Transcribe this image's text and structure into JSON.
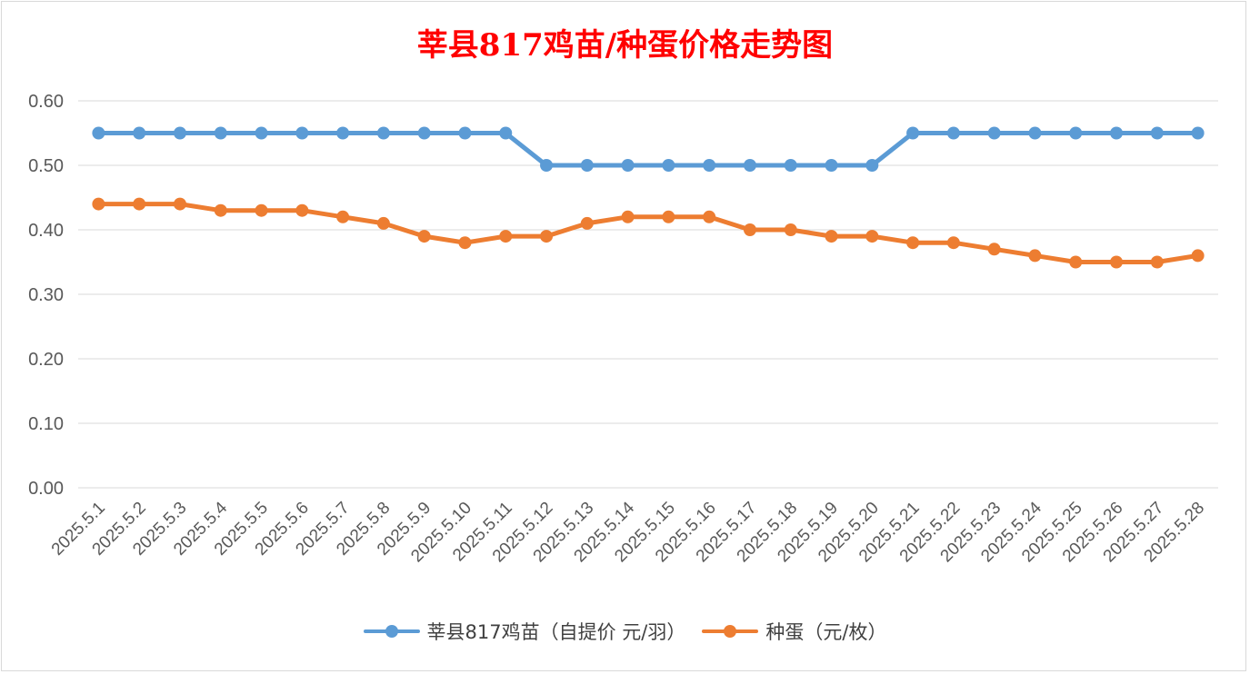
{
  "chart_data": {
    "type": "line",
    "title": "莘县817鸡苗/种蛋价格走势图",
    "categories": [
      "2025.5.1",
      "2025.5.2",
      "2025.5.3",
      "2025.5.4",
      "2025.5.5",
      "2025.5.6",
      "2025.5.7",
      "2025.5.8",
      "2025.5.9",
      "2025.5.10",
      "2025.5.11",
      "2025.5.12",
      "2025.5.13",
      "2025.5.14",
      "2025.5.15",
      "2025.5.16",
      "2025.5.17",
      "2025.5.18",
      "2025.5.19",
      "2025.5.20",
      "2025.5.21",
      "2025.5.22",
      "2025.5.23",
      "2025.5.24",
      "2025.5.25",
      "2025.5.26",
      "2025.5.27",
      "2025.5.28"
    ],
    "series": [
      {
        "name": "莘县817鸡苗（自提价 元/羽）",
        "color": "#5b9bd5",
        "values": [
          0.55,
          0.55,
          0.55,
          0.55,
          0.55,
          0.55,
          0.55,
          0.55,
          0.55,
          0.55,
          0.55,
          0.5,
          0.5,
          0.5,
          0.5,
          0.5,
          0.5,
          0.5,
          0.5,
          0.5,
          0.55,
          0.55,
          0.55,
          0.55,
          0.55,
          0.55,
          0.55,
          0.55
        ]
      },
      {
        "name": "种蛋（元/枚）",
        "color": "#ed7d31",
        "values": [
          0.44,
          0.44,
          0.44,
          0.43,
          0.43,
          0.43,
          0.42,
          0.41,
          0.39,
          0.38,
          0.39,
          0.39,
          0.41,
          0.42,
          0.42,
          0.42,
          0.4,
          0.4,
          0.39,
          0.39,
          0.38,
          0.38,
          0.37,
          0.36,
          0.35,
          0.35,
          0.35,
          0.36
        ]
      }
    ],
    "yticks": [
      "0.00",
      "0.10",
      "0.20",
      "0.30",
      "0.40",
      "0.50",
      "0.60"
    ],
    "ylim": [
      0,
      0.6
    ],
    "grid": true,
    "legend_position": "bottom"
  }
}
